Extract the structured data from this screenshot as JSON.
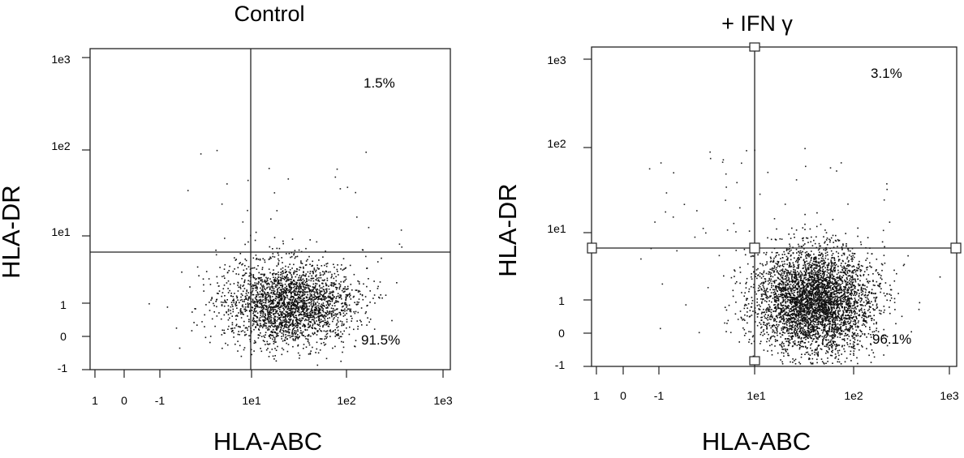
{
  "chart_data": [
    {
      "type": "scatter",
      "title": "Control",
      "xlabel": "HLA-ABC",
      "ylabel": "HLA-DR",
      "x_ticks": [
        "1",
        "0",
        "-1",
        "1e1",
        "1e2",
        "1e3"
      ],
      "y_ticks": [
        "1e3",
        "1e2",
        "1e1",
        "1",
        "0",
        "-1"
      ],
      "quadrant_gate": {
        "x": 8,
        "y": 4
      },
      "quadrant_labels": {
        "upper_right": "1.5%",
        "lower_right": "91.5%"
      },
      "cluster": {
        "center_x": 25,
        "center_y": 1.0,
        "events": 2600
      }
    },
    {
      "type": "scatter",
      "title": "+ IFN γ",
      "xlabel": "HLA-ABC",
      "ylabel": "HLA-DR",
      "x_ticks": [
        "1",
        "0",
        "-1",
        "1e1",
        "1e2",
        "1e3"
      ],
      "y_ticks": [
        "1e3",
        "1e2",
        "1e1",
        "1",
        "0",
        "-1"
      ],
      "quadrant_gate": {
        "x": 8,
        "y": 4
      },
      "quadrant_labels": {
        "upper_right": "3.1%",
        "lower_right": "96.1%"
      },
      "cluster": {
        "center_x": 40,
        "center_y": 1.0,
        "events": 4200
      }
    }
  ]
}
